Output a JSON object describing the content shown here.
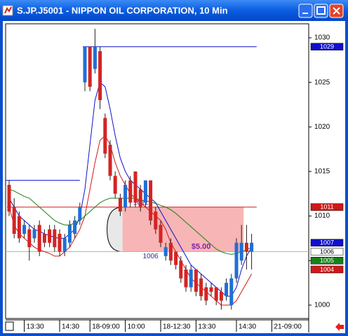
{
  "chart_data": {
    "type": "candlestick",
    "title": "S.JP.J5001 - NIPPON OIL CORPORATION, 10 Min",
    "categories": [
      null,
      null,
      null,
      "13:30",
      null,
      null,
      null,
      null,
      null,
      null,
      "14:30",
      null,
      null,
      null,
      null,
      null,
      "18-09:00",
      null,
      null,
      null,
      null,
      null,
      null,
      "10:00",
      null,
      null,
      null,
      null,
      null,
      null,
      "18-12:30",
      null,
      null,
      null,
      null,
      null,
      null,
      "13:30",
      null,
      null,
      null,
      null,
      null,
      null,
      null,
      "14:30",
      null,
      null,
      null,
      null,
      null,
      null,
      "21-09:00"
    ],
    "open": [
      1013.5,
      1011,
      1010,
      1008,
      1008.5,
      1007.5,
      1009,
      1008,
      1008.5,
      1008.5,
      1008,
      1006,
      1007,
      1008,
      1009.5,
      1025,
      1029,
      1026.5,
      1028.5,
      1021,
      1018,
      1014.5,
      1012,
      1011,
      1014,
      1015,
      1013,
      1011.5,
      1014,
      1010.5,
      1009,
      1005.5,
      1007,
      1006,
      1005,
      1004,
      1002,
      1004,
      1003,
      1002,
      1002,
      1002,
      1001.5,
      1001,
      1000,
      1003,
      1005,
      1007,
      1006,
      null,
      null,
      null,
      null
    ],
    "high": [
      1014,
      1012,
      1010.5,
      1009.5,
      1009,
      1009,
      1009.5,
      1008.5,
      1009,
      1009,
      1008.5,
      1008,
      1009.5,
      1010,
      1011.5,
      1029,
      1029,
      1031,
      1029,
      1021.5,
      1018.5,
      1015,
      1012.5,
      1014,
      1014.5,
      1015,
      1013.5,
      1014,
      1014,
      1011,
      1009.5,
      1007,
      1007.5,
      1006,
      1005.5,
      1004.5,
      1004.5,
      1004,
      1003.5,
      1002.5,
      1002.5,
      1002,
      1002,
      1003,
      1003.5,
      1007.5,
      1009,
      1009,
      1008,
      null,
      null,
      null,
      null
    ],
    "low": [
      1010,
      1007.5,
      1007,
      1007.5,
      1005,
      1007,
      1005.5,
      1006.5,
      1006.5,
      1006,
      1005.5,
      1005.5,
      1006.5,
      1007.5,
      1009,
      1024,
      1024,
      1026,
      1022,
      1016.5,
      1014,
      1012,
      1010,
      1010.5,
      1011,
      1011,
      1010.5,
      1011,
      1009,
      1008,
      1006.5,
      1005,
      1004.5,
      1004,
      1002.5,
      1001.5,
      1001.5,
      1001,
      1000.5,
      1000,
      1001,
      1000,
      999.5,
      1000.5,
      999.5,
      1002.5,
      1004.5,
      1004,
      1004,
      null,
      null,
      null,
      null
    ],
    "close": [
      1010.5,
      1008,
      1007.5,
      1009,
      1006.5,
      1008.5,
      1006,
      1007,
      1007,
      1006.5,
      1006,
      1007.5,
      1009,
      1009.5,
      1011,
      1029,
      1024.5,
      1029,
      1023,
      1017,
      1014.5,
      1012.5,
      1010.5,
      1013.5,
      1011.5,
      1011.5,
      1011,
      1014,
      1009.5,
      1008.5,
      1007,
      1006.5,
      1005,
      1004.5,
      1003,
      1002,
      1004,
      1001.5,
      1001,
      1000.5,
      1001.5,
      1000.5,
      1000.5,
      1002.5,
      1003,
      1007,
      1007,
      1006,
      1007,
      null,
      null,
      null,
      null
    ],
    "up_color": "#1f6fd6",
    "down_color": "#d42424",
    "series": [
      {
        "color": "#1010c8",
        "values": [
          1012,
          1011,
          1010,
          1009.5,
          1009,
          1008.5,
          1008.3,
          1008,
          1007.8,
          1007.6,
          1007.5,
          1007.5,
          1008,
          1008.5,
          1010,
          1013,
          1018,
          1023,
          1025,
          1024.5,
          1022,
          1019,
          1016.5,
          1015,
          1014,
          1013.5,
          1013,
          1012.5,
          1012,
          1011.5,
          1010.5,
          1009.5,
          1008.5,
          1007.5,
          1006.5,
          1005.5,
          1004.5,
          1004,
          1003.5,
          1003,
          1002.5,
          1002,
          1001.5,
          1001,
          1001,
          1002,
          1004,
          1005.5,
          1006.5,
          null,
          null,
          null,
          null
        ]
      },
      {
        "color": "#d01818",
        "values": [
          1011,
          1009,
          1008,
          1007.5,
          1007,
          1006.5,
          1006.2,
          1006,
          1005.8,
          1005.5,
          1005.5,
          1006,
          1006.5,
          1007.5,
          1008.5,
          1010,
          1013,
          1016,
          1018.5,
          1019,
          1018,
          1016,
          1014.5,
          1013.5,
          1012.5,
          1012,
          1011.5,
          1011,
          1010.5,
          1010,
          1009.5,
          1008.5,
          1007,
          1006,
          1005,
          1004,
          1003,
          1002.5,
          1002,
          1001.5,
          1001,
          1000.5,
          1000,
          1000,
          1000,
          1000.5,
          1001.5,
          1002.5,
          1003.5,
          null,
          null,
          null,
          null
        ]
      },
      {
        "color": "#188018",
        "values": [
          1013,
          1012.8,
          1012.5,
          1012.2,
          1012,
          1011.5,
          1011,
          1010.5,
          1010,
          1009.5,
          1009.2,
          1009,
          1009,
          1009.2,
          1009.5,
          1010,
          1010.5,
          1011,
          1011.5,
          1011.8,
          1012,
          1012,
          1012,
          1012,
          1012,
          1012,
          1011.8,
          1011.7,
          1011.6,
          1011.4,
          1011.2,
          1011,
          1010.7,
          1010.3,
          1009.8,
          1009.3,
          1008.8,
          1008.3,
          1007.8,
          1007.3,
          1006.8,
          1006.3,
          1006,
          1005.8,
          1005.7,
          1005.8,
          1006,
          1006.2,
          1006.5,
          null,
          null,
          null,
          null
        ]
      }
    ],
    "levels": [
      {
        "value": 1029,
        "color": "#1010c8"
      },
      {
        "value": 1011,
        "color": "#d01818"
      },
      {
        "value": 1014,
        "color": "#1010c8"
      },
      {
        "value": 1006,
        "color": "#8ad08a"
      }
    ],
    "zone": {
      "low": 1006,
      "high": 1011,
      "label": "$5.00",
      "color": "#f7a8a8"
    },
    "price_markers": [
      {
        "value": 1029,
        "color": "#1010c8",
        "text_color": "#ffffff"
      },
      {
        "value": 1011,
        "color": "#d01818",
        "text_color": "#ffffff"
      },
      {
        "value": 1007,
        "color": "#1010c8",
        "text_color": "#ffffff"
      },
      {
        "value": 1006,
        "color": "#ffffff",
        "text_color": "#000000"
      },
      {
        "value": 1005,
        "color": "#188018",
        "text_color": "#ffffff"
      },
      {
        "value": 1004,
        "color": "#d01818",
        "text_color": "#ffffff"
      }
    ],
    "ylim": [
      998.5,
      1031.57
    ],
    "yticks": [
      1000,
      1005,
      1010,
      1015,
      1020,
      1025,
      1030
    ]
  }
}
